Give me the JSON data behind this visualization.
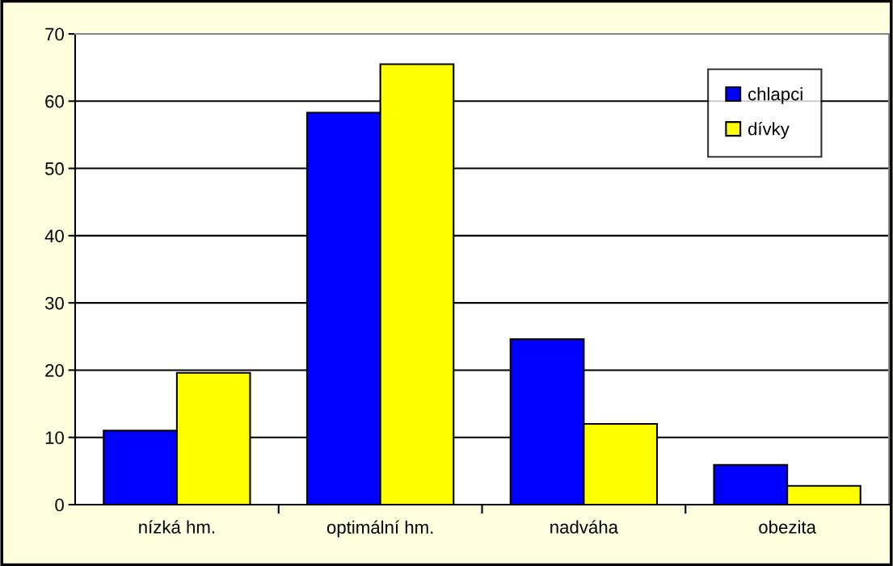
{
  "chart_data": {
    "type": "bar",
    "categories": [
      "nízká hm.",
      "optimální hm.",
      "nadváha",
      "obezita"
    ],
    "series": [
      {
        "name": "chlapci",
        "color": "#0000ff",
        "values": [
          11.0,
          58.3,
          24.6,
          5.9
        ]
      },
      {
        "name": "dívky",
        "color": "#ffff00",
        "values": [
          19.6,
          65.5,
          12.0,
          2.8
        ]
      }
    ],
    "ylim": [
      0,
      70
    ],
    "yticks": [
      0,
      10,
      20,
      30,
      40,
      50,
      60,
      70
    ],
    "grid": "y",
    "legend": "top right"
  }
}
